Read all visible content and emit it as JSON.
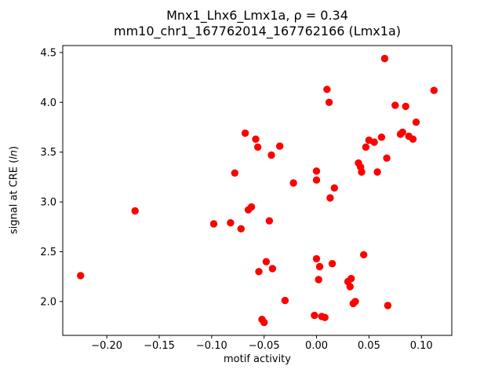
{
  "figure": {
    "title_line1": "Mnx1_Lhx6_Lmx1a, ρ = 0.34",
    "title_line2": "mm10_chr1_167762014_167762166 (Lmx1a)",
    "xlabel": "motif activity",
    "ylabel_prefix": "signal at CRE (",
    "ylabel_italic": "ln",
    "ylabel_suffix": ")"
  },
  "chart_data": {
    "type": "scatter",
    "title": "Mnx1_Lhx6_Lmx1a, ρ = 0.34",
    "subtitle": "mm10_chr1_167762014_167762166 (Lmx1a)",
    "xlabel": "motif activity",
    "ylabel": "signal at CRE (ln)",
    "correlation_rho": 0.34,
    "marker_color": "#ff0000",
    "axis_color": "#000000",
    "grid": false,
    "legend": "none",
    "xlim": [
      -0.242,
      0.129
    ],
    "ylim": [
      1.66,
      4.57
    ],
    "xticks": [
      -0.2,
      -0.15,
      -0.1,
      -0.05,
      0.0,
      0.05,
      0.1
    ],
    "xtick_labels": [
      "−0.20",
      "−0.15",
      "−0.10",
      "−0.05",
      "0.00",
      "0.05",
      "0.10"
    ],
    "yticks": [
      2.0,
      2.5,
      3.0,
      3.5,
      4.0,
      4.5
    ],
    "ytick_labels": [
      "2.0",
      "2.5",
      "3.0",
      "3.5",
      "4.0",
      "4.5"
    ],
    "points": [
      [
        -0.225,
        2.26
      ],
      [
        -0.173,
        2.91
      ],
      [
        -0.098,
        2.78
      ],
      [
        -0.082,
        2.79
      ],
      [
        -0.078,
        3.29
      ],
      [
        -0.072,
        2.73
      ],
      [
        -0.068,
        3.69
      ],
      [
        -0.065,
        2.92
      ],
      [
        -0.062,
        2.95
      ],
      [
        -0.058,
        3.63
      ],
      [
        -0.056,
        3.55
      ],
      [
        -0.055,
        2.3
      ],
      [
        -0.052,
        1.82
      ],
      [
        -0.05,
        1.79
      ],
      [
        -0.048,
        2.4
      ],
      [
        -0.045,
        2.81
      ],
      [
        -0.043,
        3.47
      ],
      [
        -0.042,
        2.33
      ],
      [
        -0.035,
        3.56
      ],
      [
        -0.03,
        2.01
      ],
      [
        -0.022,
        3.19
      ],
      [
        0.0,
        3.31
      ],
      [
        0.0,
        3.22
      ],
      [
        0.0,
        2.43
      ],
      [
        -0.002,
        1.86
      ],
      [
        0.002,
        2.22
      ],
      [
        0.003,
        2.35
      ],
      [
        0.005,
        1.85
      ],
      [
        0.008,
        1.84
      ],
      [
        0.01,
        4.13
      ],
      [
        0.012,
        4.0
      ],
      [
        0.013,
        3.04
      ],
      [
        0.015,
        2.38
      ],
      [
        0.017,
        3.14
      ],
      [
        0.03,
        2.2
      ],
      [
        0.032,
        2.15
      ],
      [
        0.033,
        2.23
      ],
      [
        0.035,
        1.98
      ],
      [
        0.037,
        2.0
      ],
      [
        0.04,
        3.39
      ],
      [
        0.042,
        3.35
      ],
      [
        0.043,
        3.3
      ],
      [
        0.045,
        2.47
      ],
      [
        0.047,
        3.55
      ],
      [
        0.05,
        3.62
      ],
      [
        0.055,
        3.6
      ],
      [
        0.058,
        3.3
      ],
      [
        0.062,
        3.65
      ],
      [
        0.065,
        4.44
      ],
      [
        0.067,
        3.44
      ],
      [
        0.068,
        1.96
      ],
      [
        0.075,
        3.97
      ],
      [
        0.08,
        3.68
      ],
      [
        0.082,
        3.7
      ],
      [
        0.085,
        3.96
      ],
      [
        0.088,
        3.66
      ],
      [
        0.092,
        3.63
      ],
      [
        0.095,
        3.8
      ],
      [
        0.112,
        4.12
      ]
    ]
  }
}
